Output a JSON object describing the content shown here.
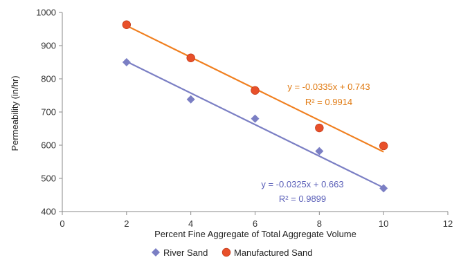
{
  "chart_data": {
    "type": "scatter",
    "title": "",
    "xlabel": "Percent Fine Aggregate of Total Aggregate Volume",
    "ylabel": "Permeability (in/hr)",
    "xlim": [
      0,
      12
    ],
    "ylim": [
      400,
      1000
    ],
    "x_ticks": [
      0,
      2,
      4,
      6,
      8,
      10,
      12
    ],
    "y_ticks": [
      400,
      500,
      600,
      700,
      800,
      900,
      1000
    ],
    "grid": false,
    "legend_position": "bottom",
    "series": [
      {
        "name": "River Sand",
        "marker": "diamond",
        "color": "#7b7fc4",
        "x": [
          2,
          4,
          6,
          8,
          10
        ],
        "y": [
          850,
          738,
          680,
          582,
          470
        ],
        "trendline": {
          "x": [
            2,
            10
          ],
          "y": [
            852,
            472
          ]
        },
        "equation": "y = -0.0325x + 0.663",
        "r2": "R² = 0.9899"
      },
      {
        "name": "Manufactured Sand",
        "marker": "circle",
        "color": "#e8502a",
        "line_color": "#f07f1f",
        "x": [
          2,
          4,
          6,
          8,
          10
        ],
        "y": [
          963,
          863,
          765,
          652,
          598
        ],
        "trendline": {
          "x": [
            2,
            10
          ],
          "y": [
            960,
            580
          ]
        },
        "equation": "y = -0.0335x + 0.743",
        "r2": "R² = 0.9914"
      }
    ]
  }
}
